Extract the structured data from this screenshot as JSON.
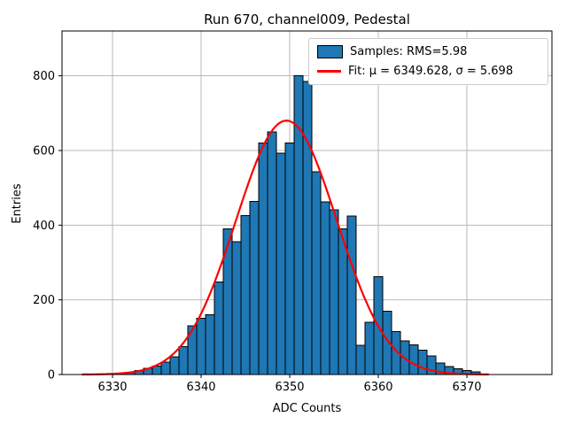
{
  "figure": {
    "title": "Run 670, channel009, Pedestal",
    "xlabel": "ADC Counts",
    "ylabel": "Entries"
  },
  "legend": {
    "samples_label": "Samples: RMS=5.98",
    "fit_label": "Fit: μ = 6349.628, σ = 5.698"
  },
  "chart_data": {
    "type": "bar",
    "title": "Run 670, channel009, Pedestal",
    "xlabel": "ADC Counts",
    "ylabel": "Entries",
    "grid": true,
    "legend_position": "upper right",
    "xlim": [
      6324.3,
      6379.6
    ],
    "ylim": [
      0,
      920
    ],
    "x_ticks": [
      6330,
      6340,
      6350,
      6360,
      6370
    ],
    "y_ticks": [
      0,
      200,
      400,
      600,
      800
    ],
    "bin_start": 6331.5,
    "bin_width": 1,
    "values": [
      6,
      11,
      17,
      23,
      33,
      47,
      75,
      130,
      150,
      160,
      248,
      390,
      356,
      426,
      463,
      620,
      650,
      593,
      620,
      800,
      785,
      543,
      462,
      441,
      390,
      425,
      78,
      140,
      262,
      170,
      115,
      90,
      80,
      65,
      50,
      31,
      21,
      15,
      11,
      7
    ],
    "series_label": "Samples: RMS=5.98",
    "rms": 5.98,
    "fit": {
      "label": "Fit: μ = 6349.628, σ = 5.698",
      "mu": 6349.628,
      "sigma": 5.698,
      "amplitude": 680,
      "range": [
        6326.6,
        6372.5
      ]
    },
    "colors": {
      "bar_fill": "#1f77b4",
      "bar_edge": "#000000",
      "fit_line": "#ff0000",
      "grid_line": "#b0b0b0",
      "spine": "#000000",
      "text": "#000000"
    }
  }
}
